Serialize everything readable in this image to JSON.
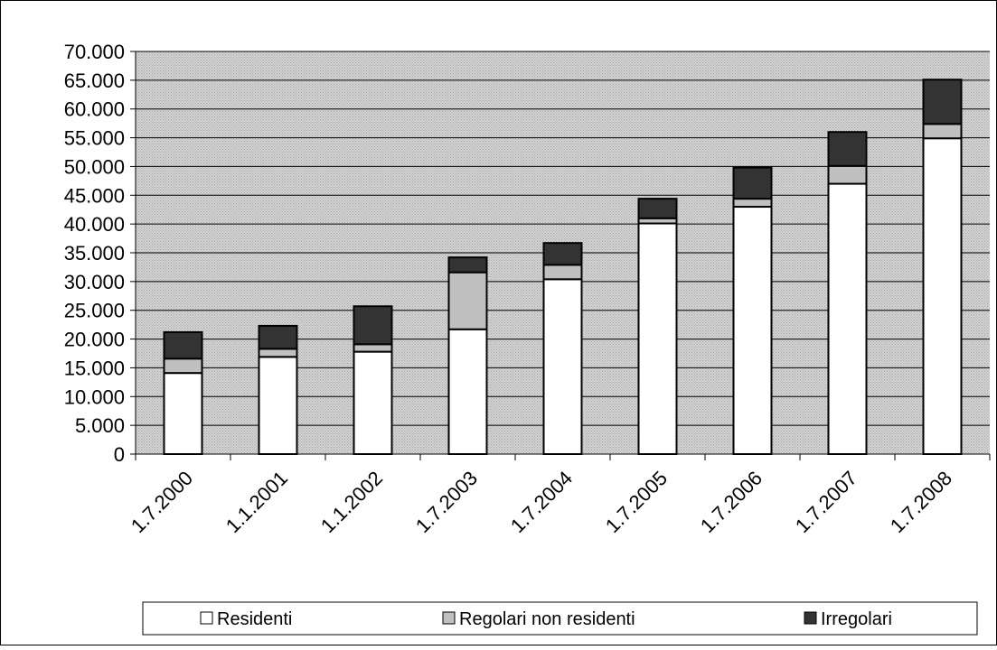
{
  "chart_data": {
    "type": "bar",
    "stacked": true,
    "categories": [
      "1.7.2000",
      "1.1.2001",
      "1.1.2002",
      "1.7.2003",
      "1.7.2004",
      "1.7.2005",
      "1.7.2006",
      "1.7.2007",
      "1.7.2008"
    ],
    "series": [
      {
        "name": "Residenti",
        "color": "#ffffff",
        "values": [
          14100,
          16900,
          17800,
          21700,
          30400,
          40100,
          43000,
          47000,
          54900
        ]
      },
      {
        "name": "Regolari non residenti",
        "color": "#c0c0c0",
        "values": [
          2500,
          1400,
          1300,
          9900,
          2500,
          900,
          1400,
          3100,
          2500
        ]
      },
      {
        "name": "Irregolari",
        "color": "#333333",
        "values": [
          4600,
          4000,
          6600,
          2600,
          3800,
          3400,
          5400,
          5900,
          7700
        ]
      }
    ],
    "y_ticks": [
      "0",
      "5.000",
      "10.000",
      "15.000",
      "20.000",
      "25.000",
      "30.000",
      "35.000",
      "40.000",
      "45.000",
      "50.000",
      "55.000",
      "60.000",
      "65.000",
      "70.000"
    ],
    "ylim": [
      0,
      70000
    ],
    "y_step": 5000,
    "grid": true,
    "plot_background": "#e0e0e0",
    "legend_position": "bottom"
  }
}
